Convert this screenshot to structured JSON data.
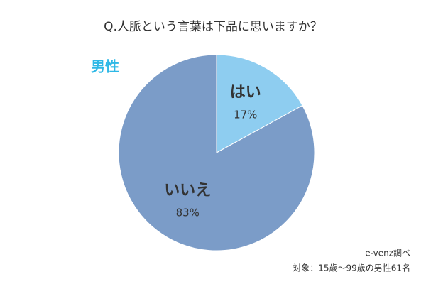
{
  "chart_data": {
    "type": "pie",
    "title": "Q.人脈という言葉は下品に思いますか？",
    "subtitle": "男性",
    "categories": [
      "はい",
      "いいえ"
    ],
    "values": [
      17,
      83
    ],
    "value_labels": [
      "17%",
      "83%"
    ],
    "colors": [
      "#8ecdf0",
      "#7b9cc8"
    ],
    "notes": [
      "e-venz調べ",
      "対象：15歳〜99歳の男性61名"
    ]
  }
}
